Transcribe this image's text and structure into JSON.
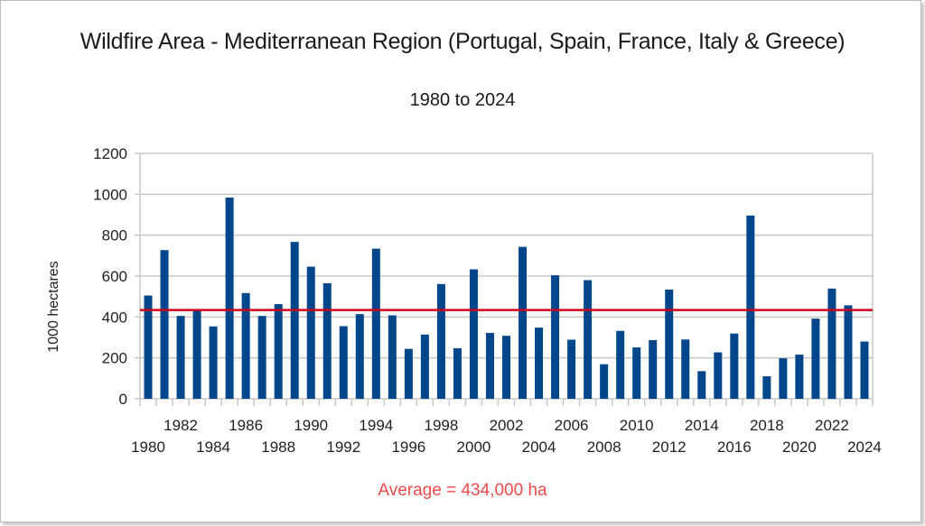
{
  "chart_data": {
    "type": "bar",
    "title": "Wildfire Area  - Mediterranean Region (Portugal, Spain, France, Italy & Greece)",
    "subtitle": "1980 to 2024",
    "xlabel": "",
    "ylabel": "1000 hectares",
    "ylim": [
      0,
      1200
    ],
    "yticks": [
      0,
      200,
      400,
      600,
      800,
      1000,
      1200
    ],
    "grid": true,
    "legend": "none",
    "bar_color": "#00468b",
    "categories": [
      1980,
      1981,
      1982,
      1983,
      1984,
      1985,
      1986,
      1987,
      1988,
      1989,
      1990,
      1991,
      1992,
      1993,
      1994,
      1995,
      1996,
      1997,
      1998,
      1999,
      2000,
      2001,
      2002,
      2003,
      2004,
      2005,
      2006,
      2007,
      2008,
      2009,
      2010,
      2011,
      2012,
      2013,
      2014,
      2015,
      2016,
      2017,
      2018,
      2019,
      2020,
      2021,
      2022,
      2023,
      2024
    ],
    "values": [
      505,
      727,
      405,
      436,
      354,
      984,
      517,
      405,
      463,
      767,
      646,
      565,
      355,
      414,
      734,
      408,
      244,
      314,
      561,
      247,
      633,
      322,
      308,
      743,
      348,
      604,
      289,
      580,
      169,
      332,
      251,
      287,
      534,
      290,
      135,
      227,
      319,
      896,
      110,
      198,
      216,
      392,
      539,
      457,
      280
    ],
    "xtick_labels_upper": [
      "1982",
      "1986",
      "1990",
      "1994",
      "1998",
      "2002",
      "2006",
      "2010",
      "2014",
      "2018",
      "2022"
    ],
    "xtick_labels_lower": [
      "1980",
      "1984",
      "1988",
      "1992",
      "1996",
      "2000",
      "2004",
      "2008",
      "2012",
      "2016",
      "2020",
      "2024"
    ],
    "reference_line": {
      "label": "Average",
      "value": 434,
      "color": "#d0021b"
    },
    "annotation": "Average = 434,000 ha",
    "annotation_color": "#f04a4a"
  }
}
